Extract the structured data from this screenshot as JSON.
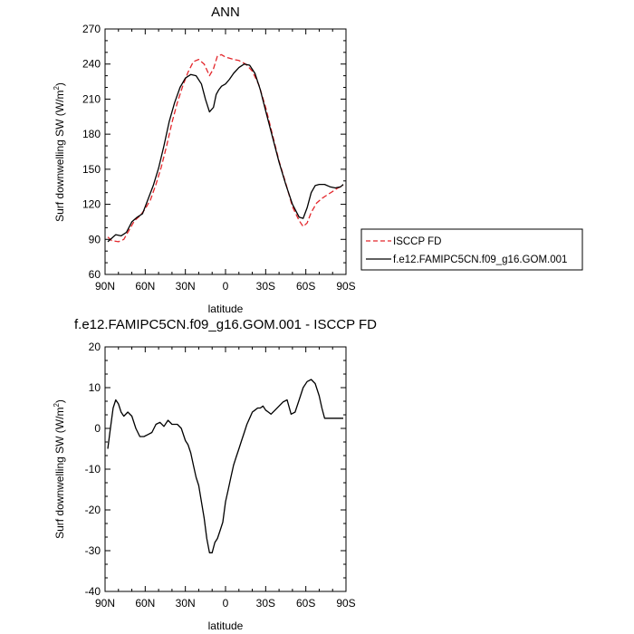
{
  "chart_data": [
    {
      "type": "line",
      "title": "ANN",
      "xlabel": "latitude",
      "ylabel": "Surf downwelling SW (W/m²)",
      "ylabel_main": "Surf downwelling SW (W/m",
      "ylabel_sup": "2",
      "ylabel_end": ")",
      "xlim": [
        90,
        -90
      ],
      "ylim": [
        60,
        270
      ],
      "yticks": [
        60,
        90,
        120,
        150,
        180,
        210,
        240,
        270
      ],
      "xticks": [
        90,
        60,
        30,
        0,
        -30,
        -60,
        -90
      ],
      "xticklabels": [
        "90N",
        "60N",
        "30N",
        "0",
        "30S",
        "60S",
        "90S"
      ],
      "legend_position": "right",
      "series": [
        {
          "name": "ISCCP FD",
          "color": "#e3262b",
          "dash": "dashed",
          "x": [
            88,
            85,
            80,
            76,
            72,
            68,
            64,
            60,
            56,
            52,
            48,
            44,
            40,
            36,
            32,
            28,
            24,
            20,
            16,
            12,
            9,
            6,
            3,
            0,
            -3,
            -6,
            -10,
            -15,
            -20,
            -25,
            -30,
            -35,
            -40,
            -45,
            -50,
            -55,
            -58,
            -61,
            -64,
            -68,
            -72,
            -76,
            -80,
            -84,
            -88
          ],
          "y": [
            92,
            89,
            88,
            90,
            98,
            106,
            110,
            116,
            124,
            137,
            152,
            170,
            190,
            207,
            221,
            233,
            242,
            244,
            240,
            230,
            236,
            247,
            248,
            246,
            245,
            244,
            243,
            240,
            234,
            222,
            203,
            180,
            157,
            138,
            118,
            106,
            101,
            104,
            113,
            121,
            125,
            128,
            131,
            134,
            136
          ]
        },
        {
          "name": "f.e12.FAMIPC5CN.f09_g16.GOM.001",
          "color": "#000000",
          "dash": "solid",
          "x": [
            88,
            85,
            82,
            78,
            74,
            70,
            66,
            62,
            58,
            54,
            50,
            46,
            42,
            38,
            34,
            30,
            26,
            22,
            18,
            15,
            12,
            9,
            7,
            5,
            3,
            0,
            -3,
            -6,
            -10,
            -14,
            -18,
            -22,
            -26,
            -30,
            -35,
            -40,
            -45,
            -50,
            -55,
            -58,
            -61,
            -64,
            -67,
            -70,
            -74,
            -78,
            -82,
            -86,
            -88
          ],
          "y": [
            88,
            91,
            94,
            93,
            96,
            105,
            109,
            112,
            124,
            136,
            151,
            170,
            191,
            207,
            220,
            228,
            231,
            230,
            223,
            210,
            199,
            203,
            214,
            218,
            221,
            223,
            227,
            232,
            237,
            240,
            239,
            232,
            218,
            200,
            178,
            156,
            137,
            120,
            109,
            108,
            117,
            130,
            136,
            137,
            137,
            135,
            134,
            135,
            137
          ]
        }
      ]
    },
    {
      "type": "line",
      "title": "f.e12.FAMIPC5CN.f09_g16.GOM.001 - ISCCP FD",
      "xlabel": "latitude",
      "ylabel": "Surf downwelling SW (W/m²)",
      "ylabel_main": "Surf downwelling SW (W/m",
      "ylabel_sup": "2",
      "ylabel_end": ")",
      "xlim": [
        90,
        -90
      ],
      "ylim": [
        -40,
        20
      ],
      "yticks": [
        -40,
        -30,
        -20,
        -10,
        0,
        10,
        20
      ],
      "xticks": [
        90,
        60,
        30,
        0,
        -30,
        -60,
        -90
      ],
      "xticklabels": [
        "90N",
        "60N",
        "30N",
        "0",
        "30S",
        "60S",
        "90S"
      ],
      "series": [
        {
          "color": "#000000",
          "dash": "solid",
          "x": [
            88,
            86,
            84,
            82,
            80,
            78,
            76,
            73,
            70,
            67,
            64,
            61,
            58,
            55,
            52,
            49,
            46,
            43,
            40,
            38,
            36,
            33,
            30,
            28,
            26,
            24,
            22,
            20,
            18,
            16,
            14,
            12,
            10,
            8,
            6,
            4,
            2,
            0,
            -2,
            -4,
            -6,
            -8,
            -10,
            -12,
            -14,
            -16,
            -18,
            -20,
            -22,
            -24,
            -26,
            -28,
            -30,
            -32,
            -34,
            -37,
            -40,
            -43,
            -46,
            -49,
            -52,
            -55,
            -58,
            -61,
            -64,
            -67,
            -70,
            -72,
            -74,
            -76,
            -78,
            -80,
            -82,
            -84,
            -86,
            -88
          ],
          "y": [
            -5,
            0,
            5,
            7,
            6,
            4,
            3,
            4,
            3,
            0,
            -2,
            -2,
            -1.5,
            -1,
            1,
            1.5,
            0.5,
            2,
            1,
            1,
            1,
            0,
            -3,
            -4,
            -6,
            -9,
            -12,
            -14,
            -18,
            -22,
            -27,
            -30.5,
            -30.5,
            -28,
            -27,
            -25,
            -23,
            -18,
            -15,
            -12,
            -9,
            -7,
            -5,
            -3,
            -1,
            1,
            2.5,
            4,
            4.5,
            5,
            5,
            5.5,
            4.5,
            4,
            3.5,
            4.5,
            5.5,
            6.5,
            7,
            3.5,
            4,
            7,
            10,
            11.5,
            12,
            11,
            8,
            5,
            2.5,
            2.5,
            2.5,
            2.5,
            2.5,
            2.5,
            2.5,
            2.5
          ]
        }
      ]
    }
  ]
}
